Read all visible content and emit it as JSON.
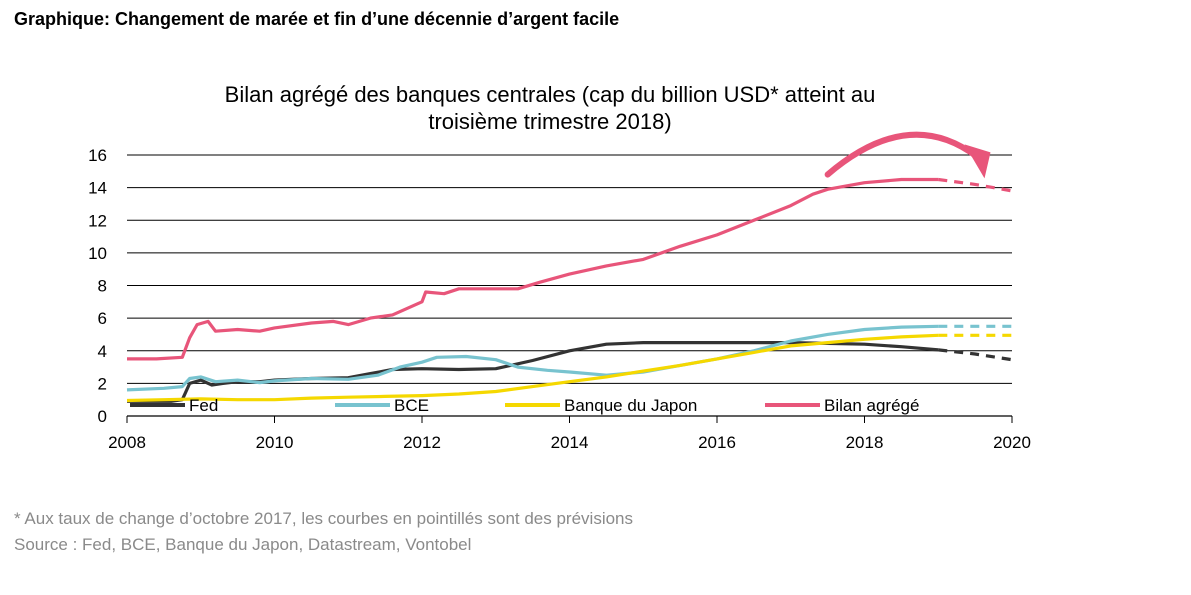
{
  "header": {
    "title": "Graphique: Changement de marée et fin d’une décennie d’argent facile"
  },
  "footer": {
    "footnote": "* Aux taux de change d’octobre 2017, les courbes en pointillés sont des prévisions",
    "source": "Source : Fed, BCE, Banque du Japon, Datastream, Vontobel"
  },
  "chart_data": {
    "type": "line",
    "title": "Bilan agrégé des banques centrales (cap du billion USD* atteint au troisième trimestre 2018)",
    "title_lines": [
      "Bilan agrégé des banques centrales (cap du billion USD* atteint au",
      "troisième trimestre 2018)"
    ],
    "xlabel": "",
    "ylabel": "",
    "xlim": [
      2008,
      2020
    ],
    "ylim": [
      0,
      16
    ],
    "x_ticks": [
      2008,
      2010,
      2012,
      2014,
      2016,
      2018,
      2020
    ],
    "y_ticks": [
      0,
      2,
      4,
      6,
      8,
      10,
      12,
      14,
      16
    ],
    "grid": "horizontal",
    "legend": "bottom-inside",
    "forecast_start": 2019.0,
    "arrow": {
      "from": [
        2017.5,
        14.8
      ],
      "apex": [
        2018.6,
        16.6
      ],
      "to": [
        2019.6,
        15.3
      ],
      "color": "#e8557a"
    },
    "series": [
      {
        "name": "Fed",
        "color": "#333333",
        "points": [
          [
            2008.0,
            0.9
          ],
          [
            2008.6,
            0.9
          ],
          [
            2008.75,
            1.0
          ],
          [
            2008.85,
            2.0
          ],
          [
            2009.0,
            2.2
          ],
          [
            2009.15,
            1.9
          ],
          [
            2009.3,
            2.0
          ],
          [
            2009.5,
            2.1
          ],
          [
            2009.8,
            2.1
          ],
          [
            2010.0,
            2.2
          ],
          [
            2010.5,
            2.3
          ],
          [
            2011.0,
            2.35
          ],
          [
            2011.3,
            2.6
          ],
          [
            2011.6,
            2.85
          ],
          [
            2012.0,
            2.9
          ],
          [
            2012.5,
            2.85
          ],
          [
            2013.0,
            2.9
          ],
          [
            2013.5,
            3.4
          ],
          [
            2014.0,
            4.0
          ],
          [
            2014.5,
            4.4
          ],
          [
            2015.0,
            4.5
          ],
          [
            2016.0,
            4.5
          ],
          [
            2017.0,
            4.5
          ],
          [
            2017.5,
            4.45
          ],
          [
            2018.0,
            4.4
          ],
          [
            2018.5,
            4.25
          ],
          [
            2019.0,
            4.05
          ],
          [
            2019.5,
            3.8
          ],
          [
            2020.0,
            3.45
          ]
        ]
      },
      {
        "name": "BCE",
        "color": "#78c3cf",
        "points": [
          [
            2008.0,
            1.6
          ],
          [
            2008.5,
            1.7
          ],
          [
            2008.75,
            1.8
          ],
          [
            2008.85,
            2.3
          ],
          [
            2009.0,
            2.4
          ],
          [
            2009.2,
            2.1
          ],
          [
            2009.5,
            2.2
          ],
          [
            2009.8,
            2.05
          ],
          [
            2010.0,
            2.15
          ],
          [
            2010.5,
            2.3
          ],
          [
            2011.0,
            2.25
          ],
          [
            2011.4,
            2.5
          ],
          [
            2011.7,
            3.0
          ],
          [
            2012.0,
            3.3
          ],
          [
            2012.2,
            3.6
          ],
          [
            2012.6,
            3.65
          ],
          [
            2013.0,
            3.45
          ],
          [
            2013.3,
            3.0
          ],
          [
            2013.7,
            2.8
          ],
          [
            2014.0,
            2.7
          ],
          [
            2014.5,
            2.5
          ],
          [
            2015.0,
            2.7
          ],
          [
            2015.5,
            3.1
          ],
          [
            2016.0,
            3.5
          ],
          [
            2016.5,
            4.0
          ],
          [
            2017.0,
            4.6
          ],
          [
            2017.5,
            5.0
          ],
          [
            2018.0,
            5.3
          ],
          [
            2018.5,
            5.45
          ],
          [
            2019.0,
            5.5
          ],
          [
            2020.0,
            5.5
          ]
        ]
      },
      {
        "name": "Banque du Japon",
        "color": "#f5d800",
        "points": [
          [
            2008.0,
            0.95
          ],
          [
            2008.5,
            1.0
          ],
          [
            2009.0,
            1.05
          ],
          [
            2009.5,
            1.0
          ],
          [
            2010.0,
            1.0
          ],
          [
            2010.5,
            1.1
          ],
          [
            2011.0,
            1.15
          ],
          [
            2011.5,
            1.2
          ],
          [
            2012.0,
            1.25
          ],
          [
            2012.5,
            1.35
          ],
          [
            2013.0,
            1.5
          ],
          [
            2013.5,
            1.8
          ],
          [
            2014.0,
            2.1
          ],
          [
            2014.5,
            2.4
          ],
          [
            2015.0,
            2.75
          ],
          [
            2015.5,
            3.1
          ],
          [
            2016.0,
            3.5
          ],
          [
            2016.5,
            3.9
          ],
          [
            2017.0,
            4.3
          ],
          [
            2017.5,
            4.5
          ],
          [
            2018.0,
            4.7
          ],
          [
            2018.5,
            4.85
          ],
          [
            2019.0,
            4.95
          ],
          [
            2020.0,
            4.95
          ]
        ]
      },
      {
        "name": "Bilan agrégé",
        "color": "#e8557a",
        "points": [
          [
            2008.0,
            3.5
          ],
          [
            2008.4,
            3.5
          ],
          [
            2008.75,
            3.6
          ],
          [
            2008.85,
            4.8
          ],
          [
            2008.95,
            5.6
          ],
          [
            2009.1,
            5.8
          ],
          [
            2009.2,
            5.2
          ],
          [
            2009.5,
            5.3
          ],
          [
            2009.8,
            5.2
          ],
          [
            2010.0,
            5.4
          ],
          [
            2010.5,
            5.7
          ],
          [
            2010.8,
            5.8
          ],
          [
            2011.0,
            5.6
          ],
          [
            2011.3,
            6.0
          ],
          [
            2011.6,
            6.2
          ],
          [
            2012.0,
            7.0
          ],
          [
            2012.05,
            7.6
          ],
          [
            2012.3,
            7.5
          ],
          [
            2012.5,
            7.8
          ],
          [
            2013.0,
            7.8
          ],
          [
            2013.3,
            7.8
          ],
          [
            2013.6,
            8.2
          ],
          [
            2014.0,
            8.7
          ],
          [
            2014.5,
            9.2
          ],
          [
            2015.0,
            9.6
          ],
          [
            2015.5,
            10.4
          ],
          [
            2016.0,
            11.1
          ],
          [
            2016.5,
            12.0
          ],
          [
            2017.0,
            12.9
          ],
          [
            2017.3,
            13.6
          ],
          [
            2017.5,
            13.9
          ],
          [
            2018.0,
            14.3
          ],
          [
            2018.5,
            14.5
          ],
          [
            2019.0,
            14.5
          ],
          [
            2019.5,
            14.2
          ],
          [
            2020.0,
            13.8
          ]
        ]
      }
    ]
  }
}
